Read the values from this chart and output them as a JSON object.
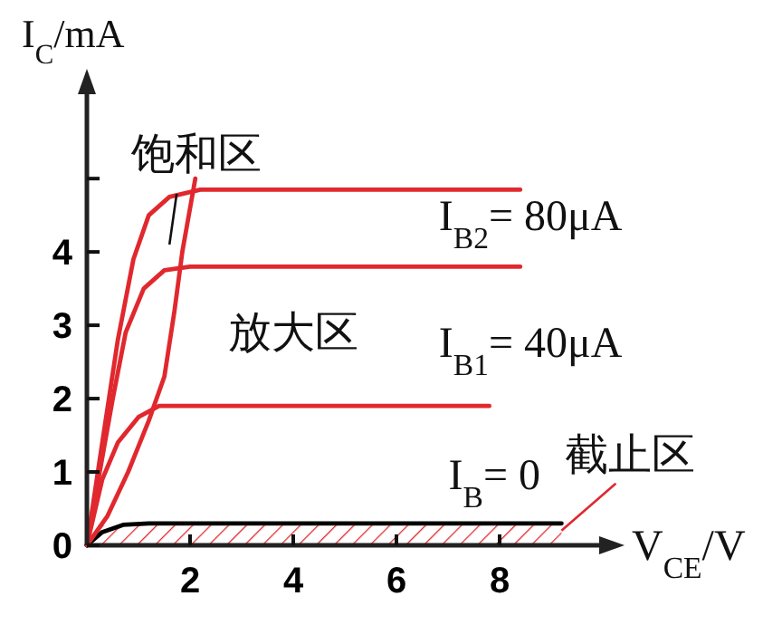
{
  "chart_data": {
    "type": "line",
    "xlabel": "V$_{CE}$/V",
    "ylabel": "I$_{C}$/mA",
    "xlim": [
      0,
      10
    ],
    "ylim": [
      0,
      6.2
    ],
    "xticks": [
      2,
      4,
      6,
      8
    ],
    "yticks": [
      0,
      1,
      2,
      3,
      4,
      {
        "value": 5,
        "label": null
      }
    ],
    "series": [
      {
        "color": "#e0282e",
        "x": [
          0,
          0.3,
          0.6,
          0.9,
          1.2,
          1.6,
          2.2,
          8.4
        ],
        "values": [
          0,
          1.4,
          2.8,
          3.9,
          4.5,
          4.75,
          4.85,
          4.85
        ]
      },
      {
        "color": "#e0282e",
        "x": [
          0,
          0.25,
          0.5,
          0.75,
          1.1,
          1.5,
          2.0,
          8.4
        ],
        "values": [
          0,
          1.0,
          2.0,
          2.9,
          3.5,
          3.75,
          3.8,
          3.8
        ]
      },
      {
        "color": "#e0282e",
        "x": [
          0,
          0.3,
          0.6,
          1.0,
          1.4,
          7.8
        ],
        "values": [
          0,
          0.9,
          1.4,
          1.75,
          1.9,
          1.9
        ]
      },
      {
        "color": "#000000",
        "x": [
          0,
          0.3,
          0.7,
          1.2,
          9.2
        ],
        "values": [
          0,
          0.18,
          0.28,
          0.3,
          0.3
        ]
      },
      {
        "color": "#e0282e",
        "x": [
          0,
          0.4,
          0.8,
          1.2,
          1.5,
          1.7,
          1.85,
          2.1
        ],
        "values": [
          0,
          0.4,
          1.0,
          1.7,
          2.3,
          3.2,
          4.0,
          5.0
        ]
      }
    ],
    "bands": [
      {
        "axis": "y",
        "from": 0,
        "to": 0.27,
        "color": "#e0282e"
      }
    ],
    "annotations": [
      "饱和区",
      "放大区",
      "I$_{B2}$= 80μA",
      "I$_{B1}$= 40μA",
      "I$_{B}$= 0",
      {
        "text": "截止区",
        "x": 9.2,
        "y": 0.3
      }
    ]
  }
}
